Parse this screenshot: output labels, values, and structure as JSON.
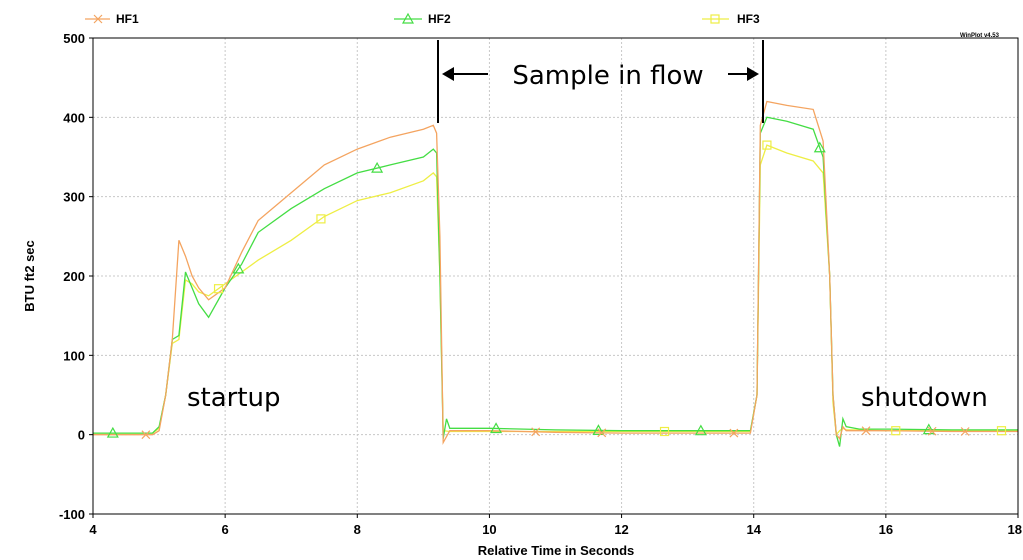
{
  "chart_data": {
    "type": "line",
    "xlabel": "Relative Time in Seconds",
    "ylabel": "BTU ft2 sec",
    "xlim": [
      4,
      18
    ],
    "ylim": [
      -100,
      500
    ],
    "xticks": [
      4,
      6,
      8,
      10,
      12,
      14,
      16,
      18
    ],
    "yticks": [
      -100,
      0,
      100,
      200,
      300,
      400,
      500
    ],
    "x_tick_labels": [
      "4",
      "6",
      "8",
      "10",
      "12",
      "14",
      "16",
      "18"
    ],
    "y_tick_labels": [
      "-100",
      "0",
      "100",
      "200",
      "300",
      "400",
      "500"
    ],
    "grid": true,
    "legend_position": "top",
    "watermark": "WinPlot v4.53",
    "series": [
      {
        "name": "HF1",
        "color": "#f4a460",
        "marker": "x",
        "x": [
          4.0,
          4.8,
          4.9,
          5.0,
          5.1,
          5.2,
          5.3,
          5.4,
          5.5,
          5.6,
          5.75,
          6.0,
          6.25,
          6.5,
          7.0,
          7.5,
          8.0,
          8.5,
          9.0,
          9.15,
          9.2,
          9.25,
          9.3,
          9.4,
          10.0,
          11.0,
          12.0,
          13.0,
          13.95,
          14.05,
          14.1,
          14.2,
          14.5,
          14.9,
          15.05,
          15.15,
          15.2,
          15.25,
          15.3,
          15.35,
          15.4,
          15.6,
          16.0,
          17.0,
          18.0
        ],
        "y": [
          0,
          0,
          0,
          5,
          50,
          120,
          245,
          225,
          200,
          185,
          170,
          185,
          230,
          270,
          305,
          340,
          360,
          375,
          385,
          390,
          380,
          250,
          -10,
          5,
          5,
          3,
          2,
          2,
          2,
          50,
          390,
          420,
          415,
          410,
          370,
          200,
          50,
          0,
          -5,
          10,
          5,
          5,
          5,
          4,
          4
        ],
        "marker_x": [
          4.8,
          10.7,
          11.7,
          13.7,
          15.7,
          16.7,
          17.2
        ]
      },
      {
        "name": "HF2",
        "color": "#44dd44",
        "marker": "triangle",
        "x": [
          4.0,
          4.8,
          4.9,
          5.0,
          5.1,
          5.2,
          5.3,
          5.4,
          5.5,
          5.6,
          5.75,
          6.0,
          6.25,
          6.5,
          7.0,
          7.5,
          8.0,
          8.5,
          9.0,
          9.15,
          9.2,
          9.25,
          9.3,
          9.35,
          9.4,
          10.0,
          11.0,
          12.0,
          13.0,
          13.95,
          14.05,
          14.1,
          14.2,
          14.5,
          14.9,
          15.05,
          15.15,
          15.2,
          15.25,
          15.3,
          15.35,
          15.4,
          15.6,
          16.0,
          17.0,
          18.0
        ],
        "y": [
          2,
          2,
          2,
          10,
          50,
          120,
          125,
          205,
          185,
          165,
          148,
          185,
          215,
          255,
          285,
          310,
          330,
          340,
          350,
          360,
          355,
          200,
          -5,
          20,
          8,
          8,
          6,
          5,
          5,
          5,
          50,
          380,
          400,
          395,
          385,
          350,
          200,
          50,
          0,
          -15,
          20,
          10,
          7,
          7,
          6,
          6
        ],
        "marker_x": [
          4.3,
          6.2,
          8.3,
          10.1,
          11.65,
          13.2,
          15.0,
          16.65
        ]
      },
      {
        "name": "HF3",
        "color": "#eeee44",
        "marker": "square",
        "x": [
          4.0,
          4.8,
          4.9,
          5.0,
          5.1,
          5.2,
          5.3,
          5.4,
          5.5,
          5.6,
          5.75,
          6.0,
          6.25,
          6.5,
          7.0,
          7.5,
          8.0,
          8.5,
          9.0,
          9.15,
          9.2,
          9.25,
          9.3,
          9.4,
          10.0,
          11.0,
          12.0,
          13.0,
          13.95,
          14.05,
          14.1,
          14.2,
          14.5,
          14.9,
          15.05,
          15.15,
          15.2,
          15.25,
          15.3,
          15.35,
          15.4,
          15.6,
          16.0,
          17.0,
          18.0
        ],
        "y": [
          2,
          2,
          2,
          8,
          50,
          115,
          120,
          195,
          190,
          180,
          175,
          190,
          205,
          220,
          245,
          275,
          295,
          305,
          320,
          330,
          325,
          200,
          5,
          4,
          4,
          4,
          4,
          4,
          4,
          50,
          340,
          365,
          355,
          345,
          330,
          200,
          40,
          0,
          5,
          8,
          6,
          6,
          5,
          5,
          5
        ],
        "marker_x": [
          5.9,
          7.45,
          12.65,
          14.2,
          16.15,
          17.75
        ]
      }
    ],
    "annotations": {
      "sample_in_flow": "Sample in flow",
      "startup": "startup",
      "shutdown": "shutdown"
    }
  }
}
